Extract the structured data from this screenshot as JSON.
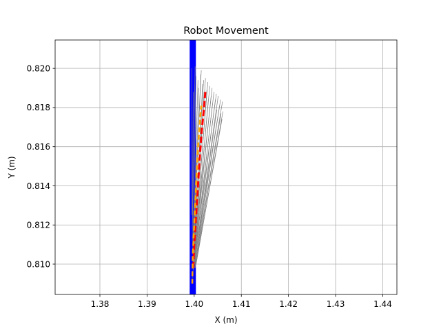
{
  "chart_data": {
    "type": "line",
    "title": "Robot Movement",
    "xlabel": "X (m)",
    "ylabel": "Y (m)",
    "xlim": [
      1.3705,
      1.443
    ],
    "ylim": [
      0.80845,
      0.82145
    ],
    "xticks": [
      1.38,
      1.39,
      1.4,
      1.41,
      1.42,
      1.43,
      1.44
    ],
    "xtick_labels": [
      "1.38",
      "1.39",
      "1.40",
      "1.41",
      "1.42",
      "1.43",
      "1.44"
    ],
    "yticks": [
      0.81,
      0.812,
      0.814,
      0.816,
      0.818,
      0.82
    ],
    "ytick_labels": [
      "0.810",
      "0.812",
      "0.814",
      "0.816",
      "0.818",
      "0.820"
    ],
    "grid": true,
    "legend": "none",
    "series": [
      {
        "style": "blue-thick-solid",
        "color": "#0000ff",
        "x": [
          1.3997,
          1.3997
        ],
        "y": [
          0.80845,
          0.82145
        ]
      },
      {
        "style": "red-dashed",
        "color": "#ff0000",
        "x": [
          1.3998,
          1.4,
          1.4004,
          1.4008,
          1.4012,
          1.4016,
          1.402,
          1.4024
        ],
        "y": [
          0.8098,
          0.811,
          0.8125,
          0.814,
          0.8155,
          0.8168,
          0.8178,
          0.8189
        ]
      },
      {
        "style": "orange-dashed",
        "color": "#ffa500",
        "x": [
          1.3996,
          1.3997,
          1.4,
          1.4003,
          1.4006,
          1.4009,
          1.4012,
          1.4015
        ],
        "y": [
          0.809,
          0.8105,
          0.812,
          0.8135,
          0.815,
          0.8163,
          0.8173,
          0.8181
        ]
      },
      {
        "style": "gray-thin-fan",
        "color": "#808080",
        "segments": [
          {
            "x0": 1.3995,
            "y0": 0.8125,
            "x1": 1.3995,
            "y1": 0.82
          },
          {
            "x0": 1.3996,
            "y0": 0.8112,
            "x1": 1.3998,
            "y1": 0.8188
          },
          {
            "x0": 1.3997,
            "y0": 0.8105,
            "x1": 1.4004,
            "y1": 0.8196
          },
          {
            "x0": 1.3997,
            "y0": 0.8098,
            "x1": 1.4008,
            "y1": 0.8194
          },
          {
            "x0": 1.3997,
            "y0": 0.8093,
            "x1": 1.401,
            "y1": 0.819
          },
          {
            "x0": 1.3998,
            "y0": 0.8102,
            "x1": 1.4014,
            "y1": 0.8197
          },
          {
            "x0": 1.3998,
            "y0": 0.81,
            "x1": 1.4018,
            "y1": 0.8192
          },
          {
            "x0": 1.3998,
            "y0": 0.8097,
            "x1": 1.4021,
            "y1": 0.8188
          },
          {
            "x0": 1.3999,
            "y0": 0.8103,
            "x1": 1.4024,
            "y1": 0.8195
          },
          {
            "x0": 1.3999,
            "y0": 0.81,
            "x1": 1.4027,
            "y1": 0.8189
          },
          {
            "x0": 1.3999,
            "y0": 0.8098,
            "x1": 1.403,
            "y1": 0.8184
          },
          {
            "x0": 1.4,
            "y0": 0.8104,
            "x1": 1.4033,
            "y1": 0.8191
          },
          {
            "x0": 1.4,
            "y0": 0.8101,
            "x1": 1.4036,
            "y1": 0.8186
          },
          {
            "x0": 1.4,
            "y0": 0.8099,
            "x1": 1.4039,
            "y1": 0.8182
          },
          {
            "x0": 1.4001,
            "y0": 0.8103,
            "x1": 1.4042,
            "y1": 0.8188
          },
          {
            "x0": 1.4001,
            "y0": 0.81,
            "x1": 1.4045,
            "y1": 0.8184
          },
          {
            "x0": 1.4001,
            "y0": 0.8098,
            "x1": 1.4048,
            "y1": 0.8179
          },
          {
            "x0": 1.4002,
            "y0": 0.8102,
            "x1": 1.4051,
            "y1": 0.8186
          },
          {
            "x0": 1.4002,
            "y0": 0.81,
            "x1": 1.4054,
            "y1": 0.8181
          },
          {
            "x0": 1.4002,
            "y0": 0.8098,
            "x1": 1.4057,
            "y1": 0.8177
          },
          {
            "x0": 1.4003,
            "y0": 0.8101,
            "x1": 1.406,
            "y1": 0.8183
          },
          {
            "x0": 1.4003,
            "y0": 0.8099,
            "x1": 1.4059,
            "y1": 0.8174
          },
          {
            "x0": 1.4004,
            "y0": 0.81,
            "x1": 1.4061,
            "y1": 0.8178
          },
          {
            "x0": 1.3996,
            "y0": 0.8118,
            "x1": 1.4002,
            "y1": 0.8201
          },
          {
            "x0": 1.3997,
            "y0": 0.8108,
            "x1": 1.4015,
            "y1": 0.8199
          },
          {
            "x0": 1.3998,
            "y0": 0.8106,
            "x1": 1.402,
            "y1": 0.8194
          },
          {
            "x0": 1.3999,
            "y0": 0.8105,
            "x1": 1.4029,
            "y1": 0.8193
          },
          {
            "x0": 1.4,
            "y0": 0.8106,
            "x1": 1.4038,
            "y1": 0.819
          },
          {
            "x0": 1.4001,
            "y0": 0.8105,
            "x1": 1.4047,
            "y1": 0.8187
          },
          {
            "x0": 1.4002,
            "y0": 0.8104,
            "x1": 1.4056,
            "y1": 0.8184
          }
        ]
      }
    ]
  }
}
